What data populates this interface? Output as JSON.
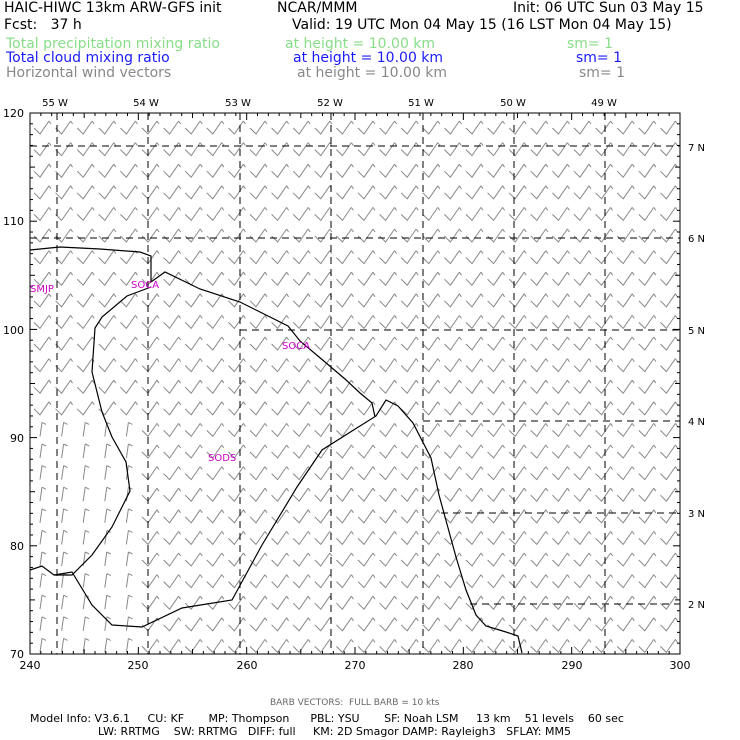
{
  "header": {
    "model": "HAIC-HIWC 13km ARW-GFS init",
    "org": "NCAR/MMM",
    "init": "Init: 06 UTC Sun 03 May 15",
    "fcst": "Fcst:   37 h",
    "valid": "Valid: 19 UTC Mon 04 May 15 (16 LST Mon 04 May 15)",
    "fields": [
      {
        "name": "Total precipitation mixing ratio",
        "height": "at height = 10.00 km",
        "sm": "sm= 1",
        "color": "#88dd88"
      },
      {
        "name": "Total cloud mixing ratio",
        "height": "at height = 10.00 km",
        "sm": "sm= 1",
        "color": "#1a1aff"
      },
      {
        "name": "Horizontal wind vectors",
        "height": "at height = 10.00 km",
        "sm": "sm= 1",
        "color": "#888888"
      }
    ]
  },
  "map": {
    "lon_labels": [
      "55 W",
      "54 W",
      "53 W",
      "52 W",
      "51 W",
      "50 W",
      "49 W"
    ],
    "lat_labels": [
      "7 N",
      "6 N",
      "5 N",
      "4 N",
      "3 N",
      "2 N"
    ],
    "x_ticks": [
      "240",
      "250",
      "260",
      "270",
      "280",
      "290",
      "300"
    ],
    "y_ticks": [
      "120",
      "110",
      "100",
      "90",
      "80",
      "70"
    ],
    "stations": [
      {
        "id": "SMJP",
        "color": "#cc00cc"
      },
      {
        "id": "SOCA",
        "color": "#cc00cc"
      },
      {
        "id": "SOCA",
        "color": "#cc00cc"
      },
      {
        "id": "SODS",
        "color": "#cc00cc"
      }
    ],
    "barb_color": "#888888",
    "coast_color": "#000000"
  },
  "footer": {
    "barb_note": "BARB VECTORS:  FULL BARB = 10 kts",
    "line1": "Model Info: V3.6.1     CU: KF       MP: Thompson      PBL: YSU       SF: Noah LSM     13 km    51 levels    60 sec",
    "line2": "LW: RRTMG    SW: RRTMG   DIFF: full     KM: 2D Smagor DAMP: Rayleigh3   SFLAY: MM5"
  }
}
